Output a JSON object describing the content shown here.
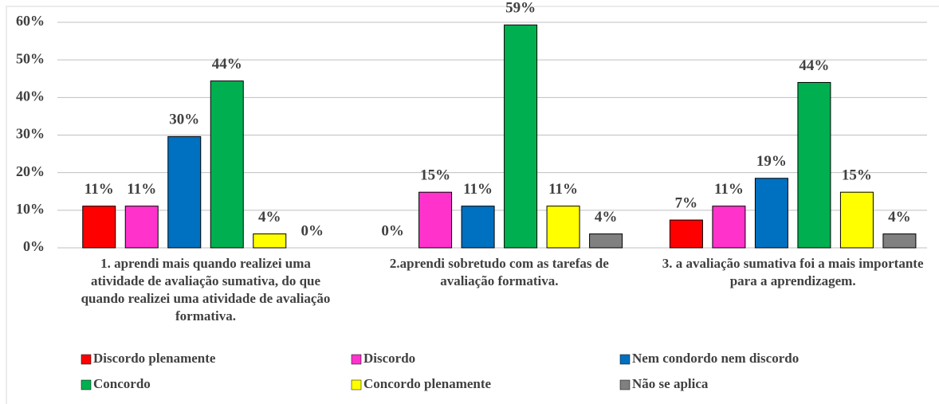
{
  "chart_data": {
    "type": "bar",
    "categories": [
      "1. aprendi mais quando realizei uma atividade de avaliação sumativa, do que quando realizei uma atividade de avaliação formativa.",
      "2.aprendi sobretudo com as tarefas de avaliação formativa.",
      "3. a avaliação sumativa foi a mais importante para a aprendizagem."
    ],
    "series": [
      {
        "name": "Discordo plenamente",
        "color": "#ff0000",
        "values": [
          11.1,
          0,
          7.4
        ],
        "value_labels": [
          "11%",
          "0%",
          "7%"
        ]
      },
      {
        "name": "Discordo",
        "color": "#ff33cc",
        "values": [
          11.1,
          14.8,
          11.1
        ],
        "value_labels": [
          "11%",
          "15%",
          "11%"
        ]
      },
      {
        "name": "Nem condordo nem discordo",
        "color": "#0070c0",
        "values": [
          29.6,
          11.1,
          18.5
        ],
        "value_labels": [
          "30%",
          "11%",
          "19%"
        ]
      },
      {
        "name": "Concordo",
        "color": "#00b050",
        "values": [
          44.4,
          59.3,
          44.0
        ],
        "value_labels": [
          "44%",
          "59%",
          "44%"
        ]
      },
      {
        "name": "Concordo plenamente",
        "color": "#ffff00",
        "values": [
          3.7,
          11.1,
          14.8
        ],
        "value_labels": [
          "4%",
          "11%",
          "15%"
        ]
      },
      {
        "name": "Não se aplica",
        "color": "#808080",
        "values": [
          0,
          3.7,
          3.7
        ],
        "value_labels": [
          "0%",
          "4%",
          "4%"
        ]
      }
    ],
    "ylim": [
      0,
      60
    ],
    "yticks": [
      {
        "value": 0,
        "label": "0%"
      },
      {
        "value": 10,
        "label": "10%"
      },
      {
        "value": 20,
        "label": "20%"
      },
      {
        "value": 30,
        "label": "30%"
      },
      {
        "value": 40,
        "label": "40%"
      },
      {
        "value": 50,
        "label": "50%"
      },
      {
        "value": 60,
        "label": "60%"
      }
    ],
    "grid": true,
    "legend": "bottom"
  }
}
